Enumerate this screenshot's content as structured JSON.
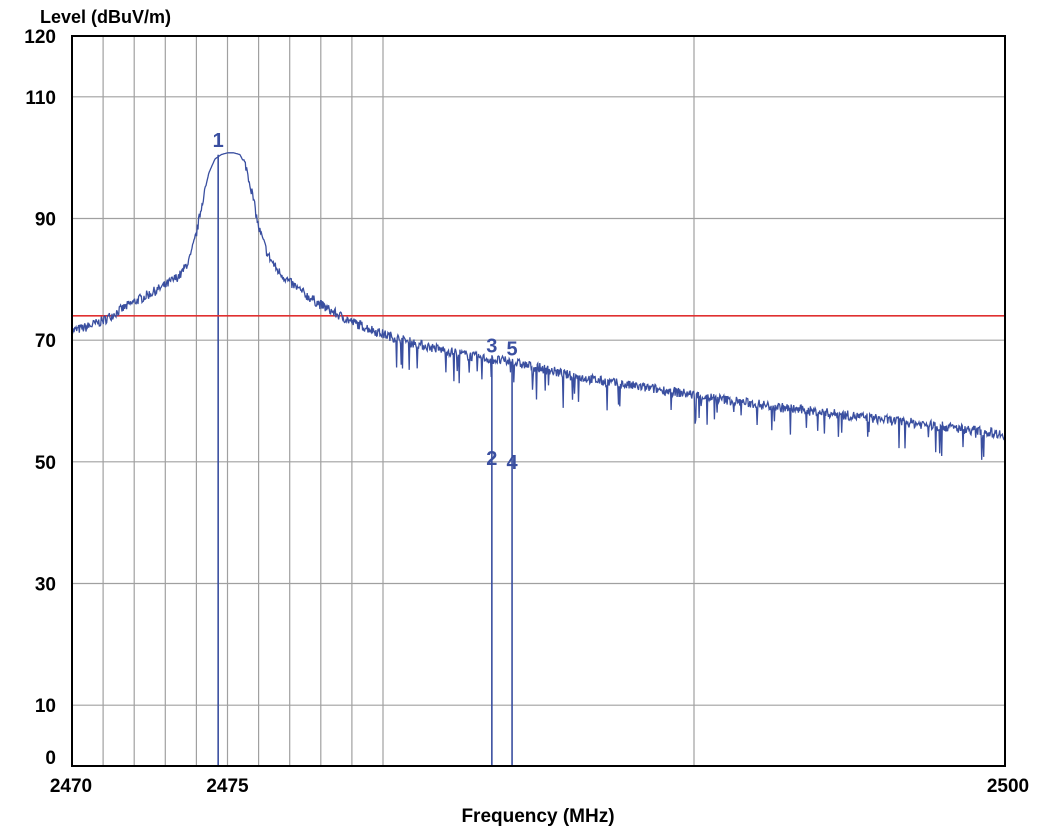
{
  "chart_data": {
    "type": "line",
    "ylabel": "Level (dBuV/m)",
    "xlabel": "Frequency (MHz)",
    "xlim": [
      2470,
      2500
    ],
    "ylim": [
      0,
      120
    ],
    "x_tick_labels": [
      {
        "value": 2470,
        "label": "2470"
      },
      {
        "value": 2475,
        "label": "2475"
      },
      {
        "value": 2500,
        "label": "2500"
      }
    ],
    "y_tick_labels": [
      {
        "value": 0,
        "label": "0"
      },
      {
        "value": 10,
        "label": "10"
      },
      {
        "value": 30,
        "label": "30"
      },
      {
        "value": 50,
        "label": "50"
      },
      {
        "value": 70,
        "label": "70"
      },
      {
        "value": 90,
        "label": "90"
      },
      {
        "value": 110,
        "label": "110"
      },
      {
        "value": 120,
        "label": "120"
      }
    ],
    "y_gridlines": [
      10,
      30,
      50,
      70,
      90,
      110
    ],
    "x_gridlines": [
      2471,
      2472,
      2473,
      2474,
      2475,
      2476,
      2477,
      2478,
      2479,
      2480,
      2490
    ],
    "grid": true,
    "colors": {
      "trace": "#3a4fa0",
      "limit": "#e03030",
      "markers": "#3a4fa0",
      "grid": "#a0a0a0",
      "frame": "#000000"
    },
    "limit_line": {
      "y": 74
    },
    "series": [
      {
        "points": [
          [
            2470.0,
            71.5
          ],
          [
            2470.5,
            72.2
          ],
          [
            2471.0,
            73.2
          ],
          [
            2471.5,
            74.8
          ],
          [
            2472.0,
            76.3
          ],
          [
            2472.5,
            77.6
          ],
          [
            2473.0,
            79.0
          ],
          [
            2473.5,
            80.8
          ],
          [
            2473.8,
            83.5
          ],
          [
            2474.0,
            87.5
          ],
          [
            2474.2,
            93.0
          ],
          [
            2474.4,
            97.5
          ],
          [
            2474.6,
            99.8
          ],
          [
            2474.8,
            100.5
          ],
          [
            2475.0,
            100.8
          ],
          [
            2475.2,
            100.8
          ],
          [
            2475.4,
            100.5
          ],
          [
            2475.6,
            98.5
          ],
          [
            2475.8,
            94.0
          ],
          [
            2476.0,
            88.5
          ],
          [
            2476.3,
            84.0
          ],
          [
            2476.6,
            81.5
          ],
          [
            2477.0,
            79.5
          ],
          [
            2477.5,
            77.5
          ],
          [
            2478.0,
            75.8
          ],
          [
            2478.5,
            74.3
          ],
          [
            2479.0,
            73.0
          ],
          [
            2479.5,
            72.0
          ],
          [
            2480.0,
            71.0
          ],
          [
            2481.0,
            69.5
          ],
          [
            2482.0,
            68.3
          ],
          [
            2483.0,
            67.2
          ],
          [
            2484.0,
            66.5
          ],
          [
            2485.0,
            65.5
          ],
          [
            2486.0,
            64.2
          ],
          [
            2487.0,
            63.3
          ],
          [
            2488.0,
            62.5
          ],
          [
            2489.0,
            61.8
          ],
          [
            2490.0,
            61.0
          ],
          [
            2491.0,
            60.2
          ],
          [
            2492.0,
            59.5
          ],
          [
            2493.0,
            58.8
          ],
          [
            2494.0,
            58.2
          ],
          [
            2495.0,
            57.6
          ],
          [
            2496.0,
            57.0
          ],
          [
            2497.0,
            56.4
          ],
          [
            2498.0,
            55.8
          ],
          [
            2499.0,
            55.2
          ],
          [
            2500.0,
            54.5
          ]
        ]
      }
    ],
    "markers": [
      {
        "label": "1",
        "x": 2474.7,
        "y": 100.8
      },
      {
        "label": "3",
        "x": 2483.5,
        "y": 67.0
      },
      {
        "label": "2",
        "x": 2483.5,
        "y": 48.5
      },
      {
        "label": "5",
        "x": 2484.15,
        "y": 66.5
      },
      {
        "label": "4",
        "x": 2484.15,
        "y": 47.8
      }
    ]
  }
}
